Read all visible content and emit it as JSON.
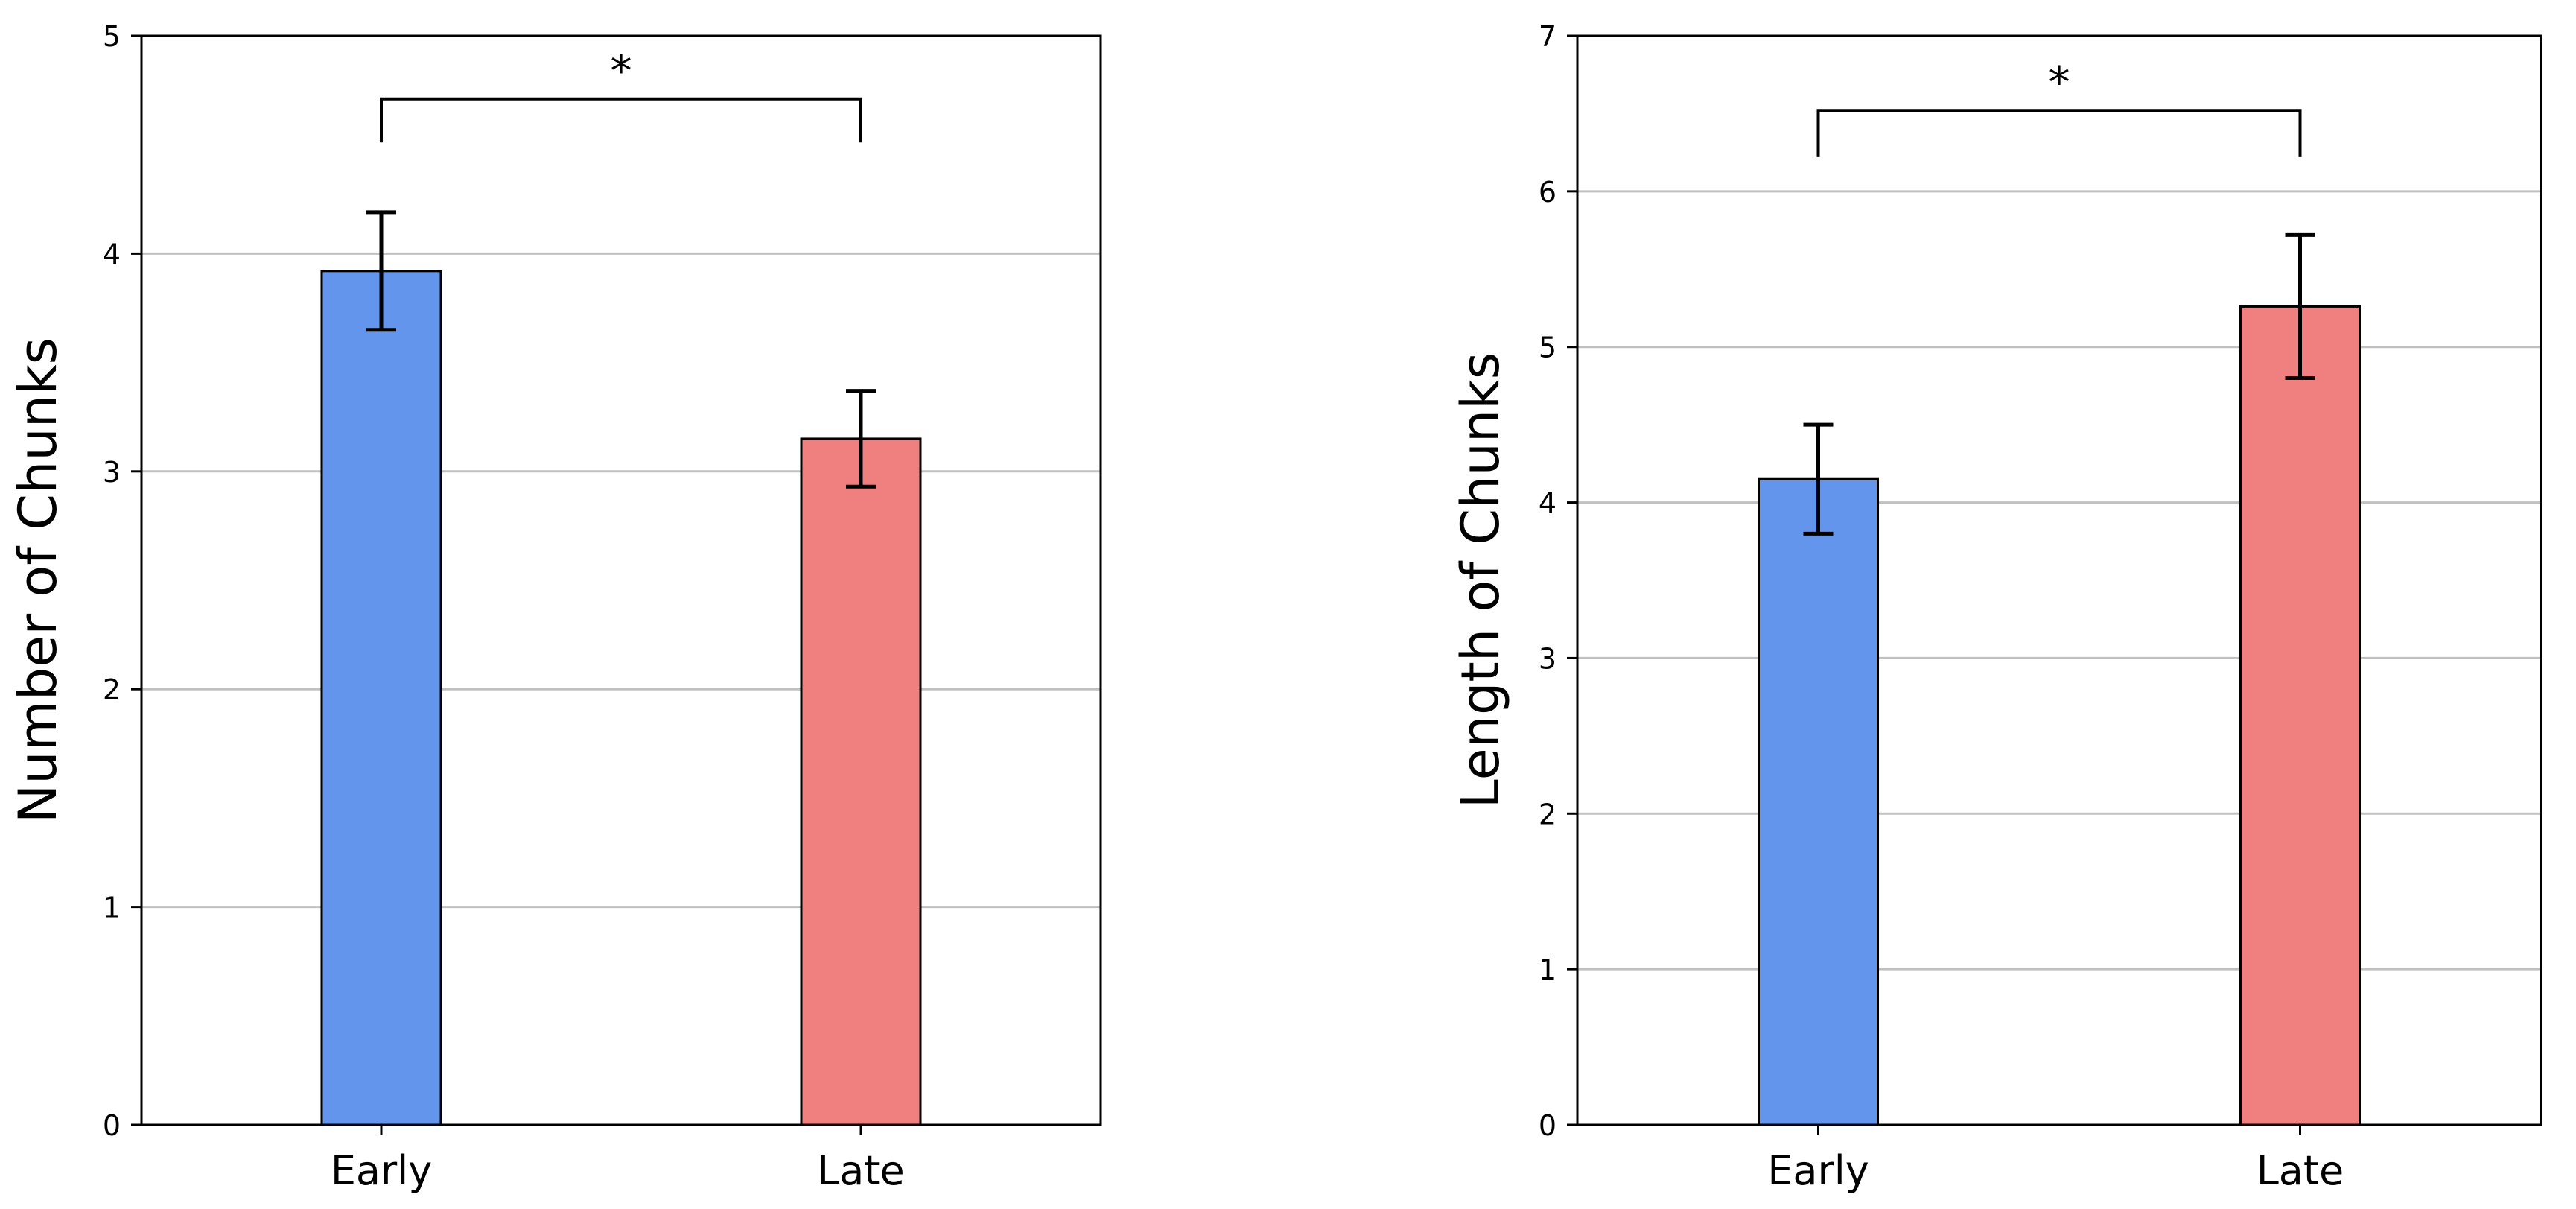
{
  "chart_data": [
    {
      "type": "bar",
      "categories": [
        "Early",
        "Late"
      ],
      "values": [
        3.92,
        3.15
      ],
      "errors": [
        0.27,
        0.22
      ],
      "xlabel": "",
      "ylabel": "Number of Chunks",
      "ylim": [
        0,
        5
      ],
      "yticks": [
        0,
        1,
        2,
        3,
        4,
        5
      ],
      "grid": "y",
      "significance": {
        "between": [
          "Early",
          "Late"
        ],
        "label": "*",
        "height": 4.71,
        "drop": 0.2
      }
    },
    {
      "type": "bar",
      "categories": [
        "Early",
        "Late"
      ],
      "values": [
        4.15,
        5.26
      ],
      "errors": [
        0.35,
        0.46
      ],
      "xlabel": "",
      "ylabel": "Length of Chunks",
      "ylim": [
        0,
        7
      ],
      "yticks": [
        0,
        1,
        2,
        3,
        4,
        5,
        6,
        7
      ],
      "grid": "y",
      "significance": {
        "between": [
          "Early",
          "Late"
        ],
        "label": "*",
        "height": 6.52,
        "drop": 0.3
      }
    }
  ],
  "colors": {
    "Early": "#6495ED",
    "Late": "#F08080",
    "grid": "#c0c0c0",
    "edge": "#000000"
  }
}
